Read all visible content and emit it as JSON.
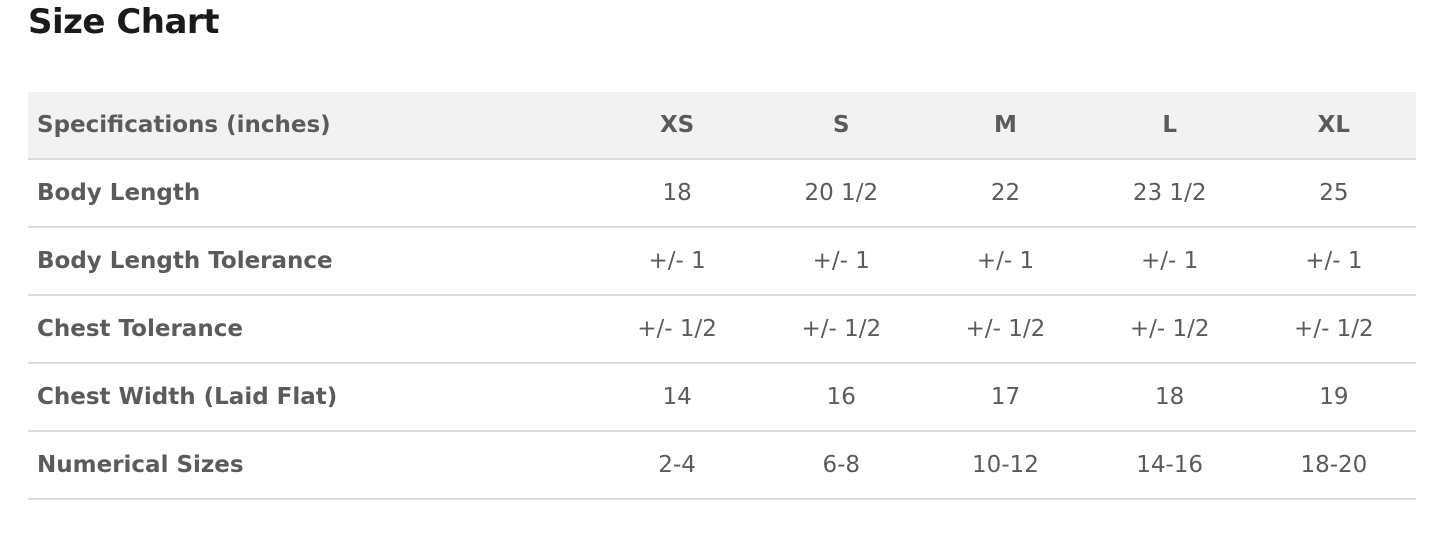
{
  "title": "Size Chart",
  "table": {
    "header": [
      "Specifications (inches)",
      "XS",
      "S",
      "M",
      "L",
      "XL"
    ],
    "rows": [
      {
        "label": "Body Length",
        "values": [
          "18",
          "20 1/2",
          "22",
          "23 1/2",
          "25"
        ]
      },
      {
        "label": "Body Length Tolerance",
        "values": [
          "+/- 1",
          "+/- 1",
          "+/- 1",
          "+/- 1",
          "+/- 1"
        ]
      },
      {
        "label": "Chest Tolerance",
        "values": [
          "+/- 1/2",
          "+/- 1/2",
          "+/- 1/2",
          "+/- 1/2",
          "+/- 1/2"
        ]
      },
      {
        "label": "Chest Width (Laid Flat)",
        "values": [
          "14",
          "16",
          "17",
          "18",
          "19"
        ]
      },
      {
        "label": "Numerical Sizes",
        "values": [
          "2-4",
          "6-8",
          "10-12",
          "14-16",
          "18-20"
        ]
      }
    ]
  }
}
